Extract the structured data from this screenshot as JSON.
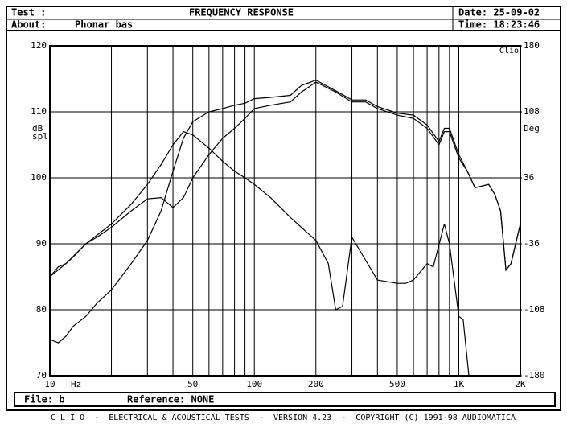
{
  "header": {
    "test_label": "Test :",
    "title": "FREQUENCY RESPONSE",
    "date": "Date: 25-09-02",
    "about_label": "About:",
    "about": "Phonar bas",
    "time": "Time: 18:23:46"
  },
  "chart_data": {
    "type": "line",
    "xlog": true,
    "xlim": [
      10,
      2000
    ],
    "xticks": [
      10,
      50,
      100,
      200,
      500,
      {
        "value": 1000,
        "label": "1K"
      },
      {
        "value": 2000,
        "label": "2K"
      }
    ],
    "xminorticks": [
      20,
      30,
      40,
      60,
      70,
      80,
      90,
      300,
      400,
      600,
      700,
      800,
      900
    ],
    "xlabel": "Hz",
    "ylabel": "dB spl",
    "y2label": "Deg",
    "brand": "Clio",
    "ylim": [
      70,
      120
    ],
    "yticks": [
      70,
      80,
      90,
      100,
      110,
      120
    ],
    "y2lim": [
      -180,
      180
    ],
    "y2ticks": [
      -180,
      -108,
      -36,
      36,
      108,
      180
    ],
    "grid": true,
    "series": [
      {
        "color": "#000000",
        "x": [
          10,
          11,
          12,
          13,
          15,
          17,
          20,
          25,
          30,
          35,
          40,
          45,
          50,
          60,
          70,
          80,
          90,
          100,
          120,
          150,
          170,
          200,
          250,
          300,
          350,
          400,
          500,
          600,
          700,
          800,
          850,
          900,
          1000,
          1100,
          1200,
          1400,
          1500,
          1600,
          1700,
          1800,
          2000
        ],
        "values": [
          85,
          86.5,
          87,
          88,
          90,
          91,
          92.5,
          95,
          96.8,
          97,
          95.5,
          97,
          100,
          103.5,
          106,
          107.5,
          109,
          110.5,
          111,
          111.5,
          113,
          114.5,
          113,
          111.5,
          111.5,
          110.5,
          109.5,
          109,
          107.5,
          105,
          107,
          107,
          103,
          101,
          98.5,
          99,
          97.5,
          95,
          86,
          87,
          93
        ]
      },
      {
        "color": "#000000",
        "x": [
          10,
          11,
          12,
          13,
          15,
          17,
          20,
          25,
          30,
          35,
          40,
          45,
          50,
          60,
          70,
          80,
          90,
          100,
          120,
          150,
          170,
          200,
          250,
          300,
          350,
          400,
          500,
          600,
          700,
          800,
          850,
          900,
          1000,
          1100,
          1200,
          1400,
          1500,
          1600,
          1700,
          1800,
          2000
        ],
        "values": [
          75.5,
          75,
          76,
          77.5,
          79,
          81,
          83,
          87,
          90.5,
          95,
          101,
          106,
          108.5,
          110,
          110.5,
          111,
          111.3,
          112,
          112.2,
          112.5,
          114,
          114.8,
          113.2,
          111.8,
          111.8,
          110.8,
          109.8,
          109.5,
          108,
          105.5,
          107.5,
          107.5,
          103.5,
          101,
          98.5,
          99,
          97.5,
          95,
          86,
          87,
          93
        ]
      },
      {
        "color": "#000000",
        "axis": "y2",
        "x": [
          10,
          12,
          15,
          20,
          25,
          30,
          35,
          40,
          45,
          50,
          60,
          70,
          80,
          90,
          100,
          120,
          150,
          200,
          230,
          250,
          270,
          300,
          350,
          400,
          500,
          550,
          600,
          700,
          750,
          850,
          900,
          1000,
          1050,
          1120
        ],
        "values": [
          -72,
          -57.6,
          -36,
          -14.4,
          7.2,
          28.8,
          50.4,
          72,
          86.4,
          82.8,
          68.4,
          54,
          43.2,
          36,
          28.8,
          14.4,
          -7.2,
          -32.4,
          -57.6,
          -108,
          -104.4,
          -28.8,
          -54,
          -75.6,
          -79.2,
          -79.2,
          -75.6,
          -57.6,
          -61.2,
          -14.4,
          -36,
          -115.2,
          -118.8,
          -180
        ]
      }
    ]
  },
  "info": {
    "file": "File: b",
    "reference": "Reference: NONE"
  },
  "footer": "C L I O  -  ELECTRICAL & ACOUSTICAL TESTS  -  VERSION 4.23  -  COPYRIGHT (C) 1991-98 AUDIOMATICA"
}
